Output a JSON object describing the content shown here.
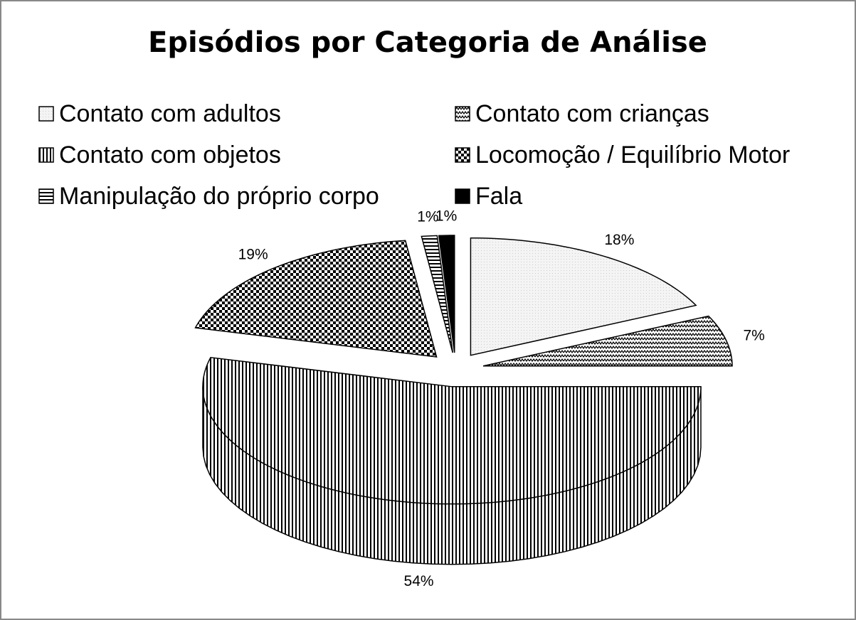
{
  "chart_data": {
    "type": "pie",
    "title": "Episódios por Categoria de Análise",
    "categories": [
      "Contato com adultos",
      "Contato com crianças",
      "Contato com objetos",
      "Locomoção / Equilíbrio Motor",
      "Manipulação do próprio corpo",
      "Fala"
    ],
    "values": [
      18,
      7,
      54,
      19,
      1,
      1
    ],
    "value_labels": [
      "18%",
      "7%",
      "54%",
      "19%",
      "1%",
      "1%"
    ],
    "legend": "top"
  }
}
